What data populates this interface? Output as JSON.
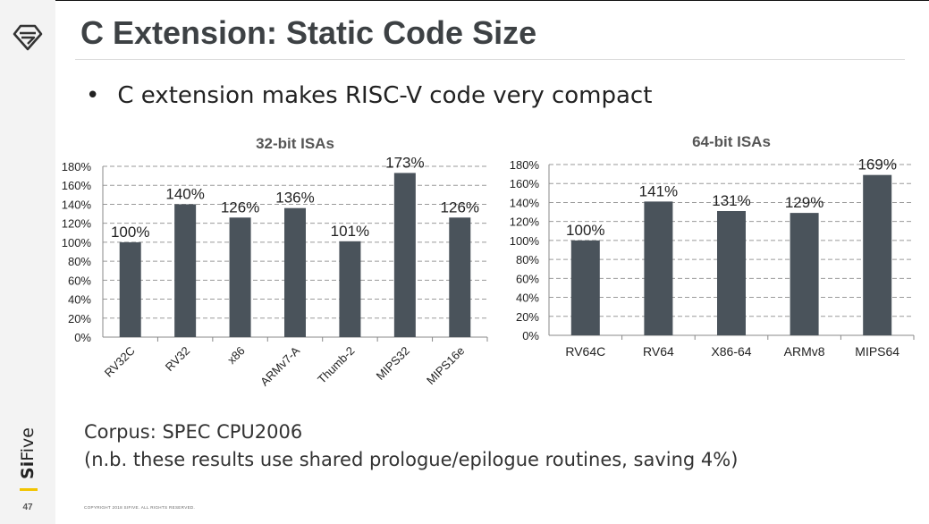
{
  "slide": {
    "title": "C Extension: Static Code Size",
    "bullet": "C extension makes RISC-V code very compact",
    "corpus_line1": "Corpus: SPEC CPU2006",
    "corpus_line2": "(n.b. these results use shared prologue/epilogue routines, saving 4%)",
    "page_number": "47",
    "copyright": "COPYRIGHT 2018 SIFIVE.  ALL RIGHTS RESERVED.",
    "brand": {
      "bold": "Si",
      "rest": "Five"
    },
    "logo_icon": "sifive-logo-icon",
    "colors": {
      "bar": "#4a535b",
      "title": "#3d4144",
      "brand_accent": "#f2c400"
    }
  },
  "chart_data": [
    {
      "type": "bar",
      "title": "32-bit ISAs",
      "categories": [
        "RV32C",
        "RV32",
        "x86",
        "ARMv7-A",
        "Thumb-2",
        "MIPS32",
        "MIPS16e"
      ],
      "values": [
        100,
        140,
        126,
        136,
        101,
        173,
        126
      ],
      "data_labels": [
        "100%",
        "140%",
        "126%",
        "136%",
        "101%",
        "173%",
        "126%"
      ],
      "yticks": [
        "0%",
        "20%",
        "40%",
        "60%",
        "80%",
        "100%",
        "120%",
        "140%",
        "160%",
        "180%"
      ],
      "ylim": [
        0,
        180
      ],
      "grid": true,
      "xlabel": "",
      "ylabel": ""
    },
    {
      "type": "bar",
      "title": "64-bit ISAs",
      "categories": [
        "RV64C",
        "RV64",
        "X86-64",
        "ARMv8",
        "MIPS64"
      ],
      "values": [
        100,
        141,
        131,
        129,
        169
      ],
      "data_labels": [
        "100%",
        "141%",
        "131%",
        "129%",
        "169%"
      ],
      "yticks": [
        "0%",
        "20%",
        "40%",
        "60%",
        "80%",
        "100%",
        "120%",
        "140%",
        "160%",
        "180%"
      ],
      "ylim": [
        0,
        180
      ],
      "grid": true,
      "xlabel": "",
      "ylabel": ""
    }
  ]
}
